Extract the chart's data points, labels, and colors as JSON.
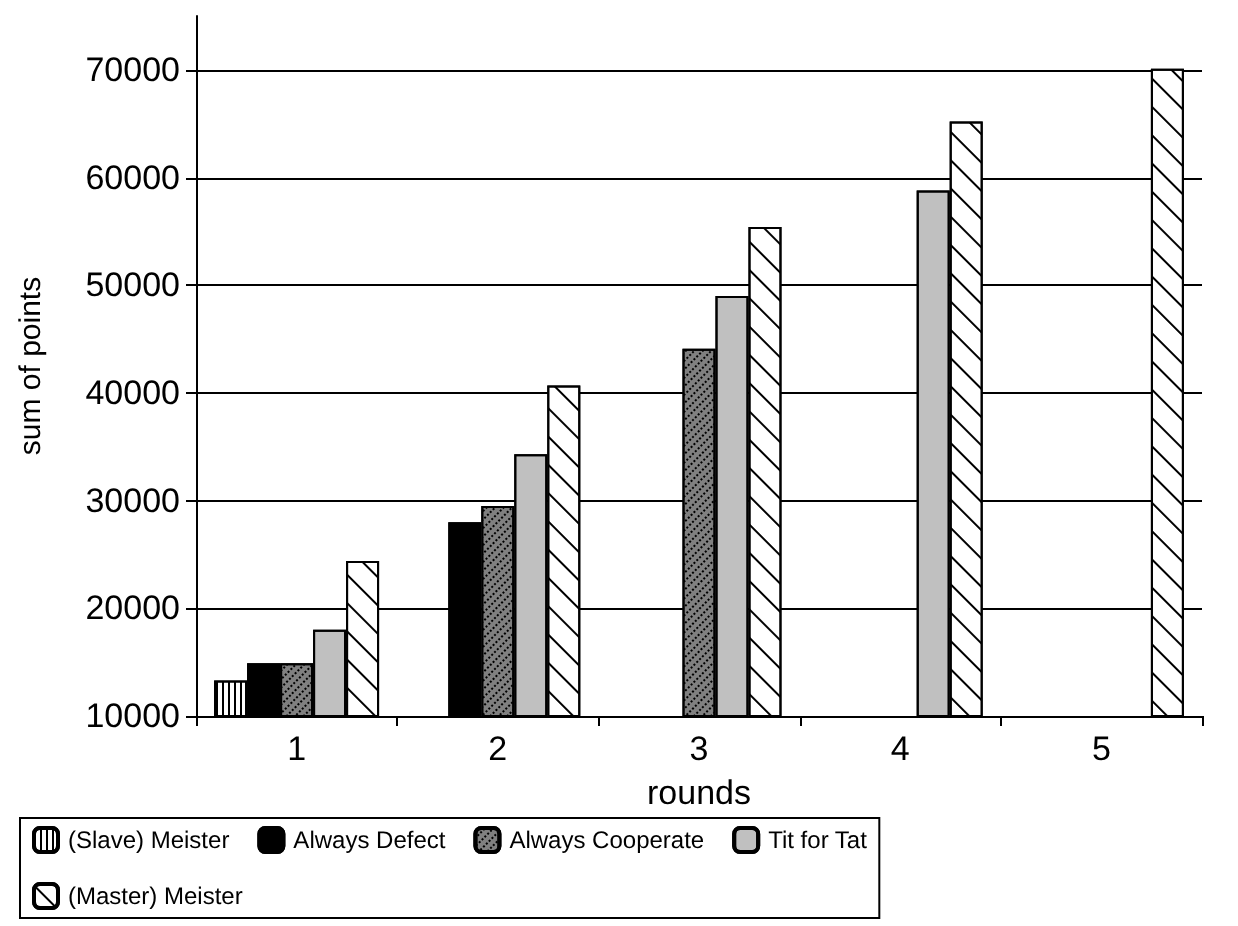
{
  "chart_data": {
    "type": "bar",
    "xlabel": "rounds",
    "ylabel": "sum of points",
    "categories": [
      "1",
      "2",
      "3",
      "4",
      "5"
    ],
    "series": [
      {
        "name": "(Slave) Meister",
        "color": "#ffffff",
        "values": [
          13300,
          null,
          null,
          null,
          null
        ]
      },
      {
        "name": "Always Defect",
        "color": "#000000",
        "values": [
          14900,
          28000,
          null,
          null,
          null
        ]
      },
      {
        "name": "Always Cooperate",
        "color": "#808080",
        "values": [
          14900,
          29500,
          44100,
          null,
          null
        ]
      },
      {
        "name": "Tit for Tat",
        "color": "#c0c0c0",
        "values": [
          18000,
          34300,
          49000,
          58800,
          null
        ]
      },
      {
        "name": "(Master) Meister",
        "color": "#ffffff",
        "values": [
          24400,
          40700,
          55400,
          65200,
          70100
        ]
      }
    ],
    "ylim": [
      10000,
      75000
    ],
    "yticks": [
      10000,
      20000,
      30000,
      40000,
      50000,
      60000,
      70000
    ],
    "grid": "y",
    "legend": "bottom left"
  }
}
